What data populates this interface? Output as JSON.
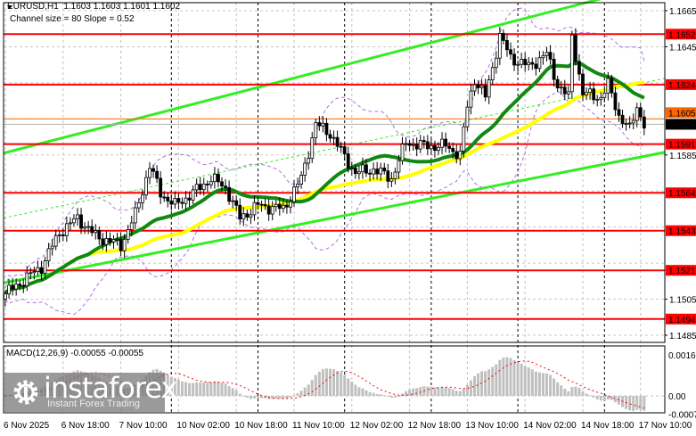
{
  "header": {
    "symbol_line": "EURUSD,H1  1.1603 1.1603 1.1601 1.1602",
    "channel_info": "Channel size = 80 Slope = 0.52"
  },
  "macd": {
    "label": "MACD(12,26,9) -0.00055 -0.00055",
    "ticks": [
      "0.00163",
      "0.00",
      "-0.00073"
    ],
    "tick_values": [
      0.00163,
      0,
      -0.00073
    ]
  },
  "logo": {
    "name": "instaforex",
    "tagline": "Instant Forex Trading"
  },
  "colors": {
    "level": "#ff0000",
    "channel": "#33ee22",
    "ma_fast": "#118811",
    "ma_slow": "#ffff00",
    "bands": "#b070e0",
    "macd_hist": "#c0c0c0",
    "macd_signal": "#ff0000",
    "current_price_bg": "#000000",
    "bid_bg": "#ff6600"
  },
  "chart_data": {
    "type": "candlestick",
    "symbol": "EURUSD",
    "timeframe": "H1",
    "ylim": [
      1.1478,
      1.1672
    ],
    "y_ticks": [
      "1.1665",
      "1.1645",
      "1.1585",
      "1.1505",
      "1.1485"
    ],
    "y_tick_values": [
      1.1665,
      1.1645,
      1.1585,
      1.1505,
      1.1485
    ],
    "x_ticks": [
      "6 Nov 2025",
      "6 Nov 18:00",
      "7 Nov 10:00",
      "10 Nov 02:00",
      "10 Nov 18:00",
      "11 Nov 10:00",
      "12 Nov 02:00",
      "12 Nov 18:00",
      "13 Nov 10:00",
      "14 Nov 02:00",
      "14 Nov 18:00",
      "17 Nov 10:00"
    ],
    "x_tick_bars": [
      0,
      16,
      32,
      48,
      64,
      80,
      96,
      112,
      128,
      144,
      160,
      176
    ],
    "day_separator_bars": [
      46,
      70,
      94,
      118,
      142,
      166
    ],
    "close_keypoints": [
      [
        0,
        1.1508
      ],
      [
        10,
        1.1523
      ],
      [
        15,
        1.1542
      ],
      [
        20,
        1.155
      ],
      [
        25,
        1.154
      ],
      [
        32,
        1.1535
      ],
      [
        36,
        1.1552
      ],
      [
        40,
        1.1579
      ],
      [
        43,
        1.1564
      ],
      [
        47,
        1.1557
      ],
      [
        52,
        1.1564
      ],
      [
        57,
        1.1572
      ],
      [
        61,
        1.1567
      ],
      [
        65,
        1.155
      ],
      [
        70,
        1.1557
      ],
      [
        77,
        1.1555
      ],
      [
        82,
        1.1572
      ],
      [
        86,
        1.1602
      ],
      [
        90,
        1.1597
      ],
      [
        93,
        1.1587
      ],
      [
        97,
        1.1575
      ],
      [
        102,
        1.1577
      ],
      [
        107,
        1.1572
      ],
      [
        111,
        1.1592
      ],
      [
        116,
        1.159
      ],
      [
        122,
        1.159
      ],
      [
        126,
        1.1585
      ],
      [
        128,
        1.1612
      ],
      [
        130,
        1.1627
      ],
      [
        133,
        1.1617
      ],
      [
        137,
        1.1651
      ],
      [
        140,
        1.1639
      ],
      [
        145,
        1.1634
      ],
      [
        150,
        1.1641
      ],
      [
        153,
        1.1624
      ],
      [
        156,
        1.1617
      ],
      [
        157,
        1.1651
      ],
      [
        160,
        1.1619
      ],
      [
        165,
        1.1617
      ],
      [
        167,
        1.1624
      ],
      [
        170,
        1.1607
      ],
      [
        173,
        1.1599
      ],
      [
        175,
        1.1612
      ],
      [
        177,
        1.1602
      ]
    ],
    "levels": [
      {
        "price": 1.1652,
        "label": "1.1652"
      },
      {
        "price": 1.1624,
        "label": "1.1624"
      },
      {
        "price": 1.1591,
        "label": "1.1591"
      },
      {
        "price": 1.1564,
        "label": "1.1564"
      },
      {
        "price": 1.1543,
        "label": "1.1543"
      },
      {
        "price": 1.1521,
        "label": "1.1521"
      },
      {
        "price": 1.1494,
        "label": "1.1494"
      }
    ],
    "current_price": {
      "price": 1.1602,
      "label": "1.1602"
    },
    "bid_line": {
      "price": 1.1605,
      "label": "1.1605"
    },
    "channel": {
      "upper": [
        [
          0,
          1.1586
        ],
        [
          160,
          1.1669
        ]
      ],
      "middle": [
        [
          0,
          1.155
        ],
        [
          184,
          1.1628
        ]
      ],
      "lower": [
        [
          0,
          1.1514
        ],
        [
          184,
          1.1587
        ]
      ]
    },
    "moving_averages": [
      {
        "period": 24,
        "color": "ma_fast"
      },
      {
        "period": 50,
        "color": "ma_slow"
      }
    ],
    "bollinger": {
      "period": 20,
      "deviations": 2
    }
  }
}
